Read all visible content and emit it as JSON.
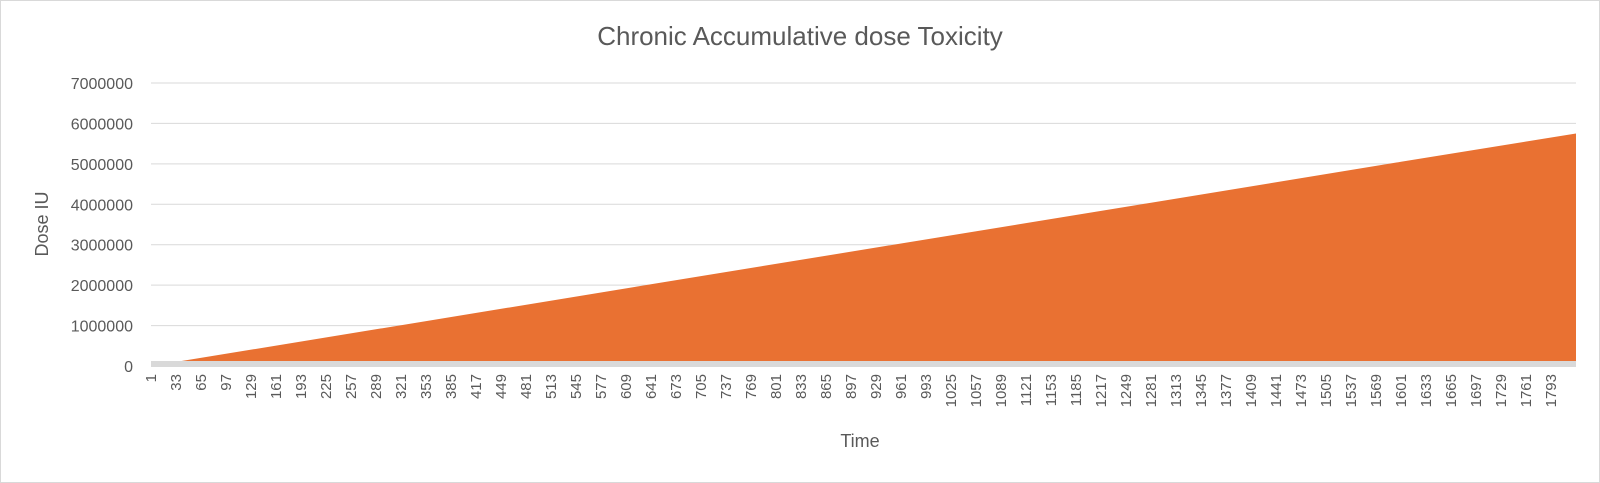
{
  "chart_data": {
    "type": "area",
    "title": "Chronic Accumulative dose Toxicity",
    "xlabel": "Time",
    "ylabel": "Dose IU",
    "ylim": [
      0,
      7000000
    ],
    "yticks": [
      "0",
      "1000000",
      "2000000",
      "3000000",
      "4000000",
      "5000000",
      "6000000",
      "7000000"
    ],
    "xticks": [
      "1",
      "33",
      "65",
      "97",
      "129",
      "161",
      "193",
      "225",
      "257",
      "289",
      "321",
      "353",
      "385",
      "417",
      "449",
      "481",
      "513",
      "545",
      "577",
      "609",
      "641",
      "673",
      "705",
      "737",
      "769",
      "801",
      "833",
      "865",
      "897",
      "929",
      "961",
      "993",
      "1025",
      "1057",
      "1089",
      "1121",
      "1153",
      "1185",
      "1217",
      "1249",
      "1281",
      "1313",
      "1345",
      "1377",
      "1409",
      "1441",
      "1473",
      "1505",
      "1537",
      "1569",
      "1601",
      "1633",
      "1665",
      "1697",
      "1729",
      "1761",
      "1793"
    ],
    "xlim": [
      1,
      1825
    ],
    "grid": true,
    "legend": "none",
    "series": [
      {
        "x": [
          1,
          321,
          641,
          961,
          1281,
          1601,
          1825
        ],
        "values": [
          0,
          1010000,
          2020000,
          3030000,
          4040000,
          5050000,
          5750000
        ],
        "color": "#e97132"
      },
      {
        "x": [
          1,
          1825
        ],
        "values": [
          0,
          0
        ],
        "color": "#d9d9d9"
      }
    ]
  }
}
